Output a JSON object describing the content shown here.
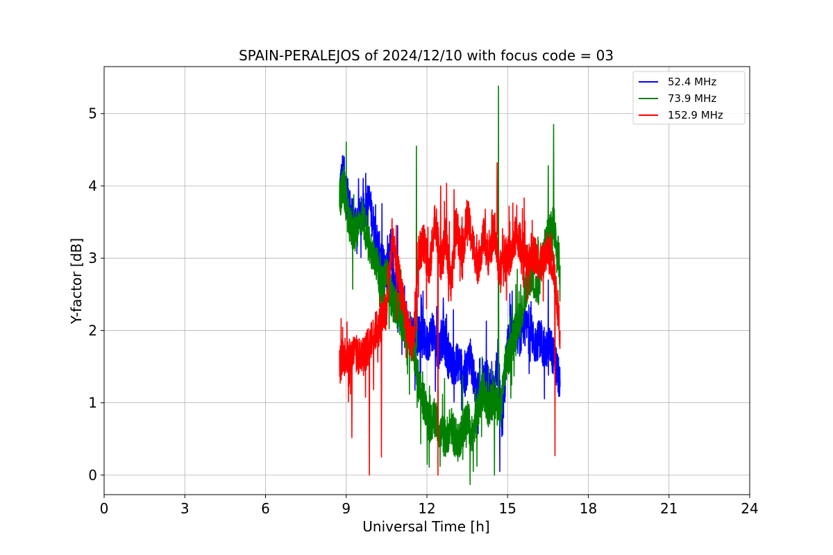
{
  "chart_data": {
    "type": "line",
    "title": "SPAIN-PERALEJOS of 2024/12/10 with focus code = 03",
    "xlabel": "Universal Time [h]",
    "ylabel": "Y-factor [dB]",
    "xlim": [
      0,
      24
    ],
    "ylim": [
      -0.27,
      5.65
    ],
    "xticks": [
      0,
      3,
      6,
      9,
      12,
      15,
      18,
      21,
      24
    ],
    "yticks": [
      0,
      1,
      2,
      3,
      4,
      5
    ],
    "grid": true,
    "legend_position": "top-right",
    "series": [
      {
        "name": "  52.4 MHz",
        "color": "#0000ff",
        "x": [
          8.75,
          8.9,
          9.1,
          9.3,
          9.6,
          9.85,
          10.1,
          10.3,
          10.5,
          10.65,
          10.8,
          11.0,
          11.2,
          11.4,
          11.6,
          11.8,
          12.0,
          12.2,
          12.4,
          12.6,
          12.8,
          13.0,
          13.2,
          13.4,
          13.6,
          13.8,
          14.0,
          14.2,
          14.4,
          14.6,
          14.8,
          15.0,
          15.2,
          15.5,
          15.8,
          16.0,
          16.2,
          16.4,
          16.6,
          16.8,
          16.95
        ],
        "y": [
          3.9,
          4.2,
          3.7,
          3.5,
          3.6,
          3.8,
          3.3,
          3.0,
          2.8,
          3.2,
          2.6,
          2.3,
          2.1,
          2.0,
          1.9,
          2.0,
          1.8,
          2.0,
          1.7,
          1.9,
          1.6,
          1.5,
          1.6,
          1.3,
          1.7,
          1.2,
          1.1,
          1.4,
          1.0,
          1.5,
          0.7,
          1.8,
          2.0,
          1.9,
          2.1,
          1.8,
          1.9,
          1.7,
          1.8,
          1.5,
          1.3
        ],
        "spikes": [
          [
            8.85,
            4.42
          ],
          [
            9.05,
            4.1
          ],
          [
            9.85,
            3.95
          ],
          [
            10.9,
            3.45
          ],
          [
            12.6,
            2.45
          ],
          [
            14.7,
            0.05
          ],
          [
            16.5,
            2.7
          ]
        ]
      },
      {
        "name": "  73.9 MHz",
        "color": "#008000",
        "x": [
          8.75,
          8.9,
          9.1,
          9.3,
          9.6,
          9.85,
          10.1,
          10.3,
          10.5,
          10.7,
          10.9,
          11.1,
          11.3,
          11.5,
          11.7,
          11.9,
          12.1,
          12.3,
          12.5,
          12.7,
          12.9,
          13.1,
          13.3,
          13.5,
          13.7,
          13.9,
          14.1,
          14.3,
          14.5,
          14.7,
          14.9,
          15.1,
          15.3,
          15.5,
          15.7,
          15.9,
          16.1,
          16.3,
          16.5,
          16.7,
          16.95
        ],
        "y": [
          3.8,
          4.0,
          3.5,
          3.3,
          3.6,
          3.2,
          3.0,
          2.6,
          2.8,
          2.4,
          2.3,
          2.1,
          1.9,
          1.8,
          1.2,
          1.0,
          0.7,
          0.8,
          0.6,
          0.5,
          0.7,
          0.4,
          0.6,
          0.8,
          0.5,
          0.9,
          1.2,
          0.9,
          1.1,
          0.8,
          1.5,
          1.7,
          2.0,
          2.2,
          2.6,
          2.8,
          2.5,
          3.0,
          3.3,
          3.5,
          2.9
        ],
        "spikes": [
          [
            11.6,
            4.55
          ],
          [
            14.65,
            5.38
          ],
          [
            16.7,
            4.85
          ],
          [
            16.5,
            4.28
          ],
          [
            12.0,
            0.15
          ],
          [
            14.5,
            0.0
          ]
        ]
      },
      {
        "name": " 152.9 MHz",
        "color": "#ff0000",
        "x": [
          8.75,
          8.9,
          9.1,
          9.3,
          9.6,
          9.85,
          10.1,
          10.3,
          10.5,
          10.7,
          10.9,
          11.1,
          11.3,
          11.5,
          11.7,
          11.9,
          12.1,
          12.3,
          12.5,
          12.7,
          12.9,
          13.1,
          13.3,
          13.5,
          13.7,
          13.9,
          14.1,
          14.3,
          14.5,
          14.7,
          14.9,
          15.1,
          15.3,
          15.5,
          15.7,
          15.9,
          16.1,
          16.3,
          16.5,
          16.7,
          16.95
        ],
        "y": [
          1.5,
          1.7,
          1.6,
          1.7,
          1.6,
          1.8,
          2.0,
          2.1,
          2.3,
          3.2,
          2.9,
          2.4,
          2.0,
          1.8,
          3.1,
          3.2,
          2.8,
          3.6,
          2.9,
          3.3,
          2.6,
          3.5,
          3.0,
          3.6,
          3.2,
          2.9,
          3.3,
          3.0,
          3.4,
          2.8,
          3.1,
          3.0,
          3.3,
          3.2,
          2.9,
          3.1,
          3.0,
          2.9,
          3.1,
          2.9,
          2.0
        ],
        "spikes": [
          [
            9.85,
            0.0
          ],
          [
            12.4,
            0.0
          ],
          [
            14.6,
            4.32
          ],
          [
            16.75,
            0.27
          ],
          [
            12.5,
            4.0
          ],
          [
            13.0,
            3.95
          ],
          [
            9.2,
            0.52
          ],
          [
            10.3,
            0.25
          ]
        ]
      }
    ]
  }
}
